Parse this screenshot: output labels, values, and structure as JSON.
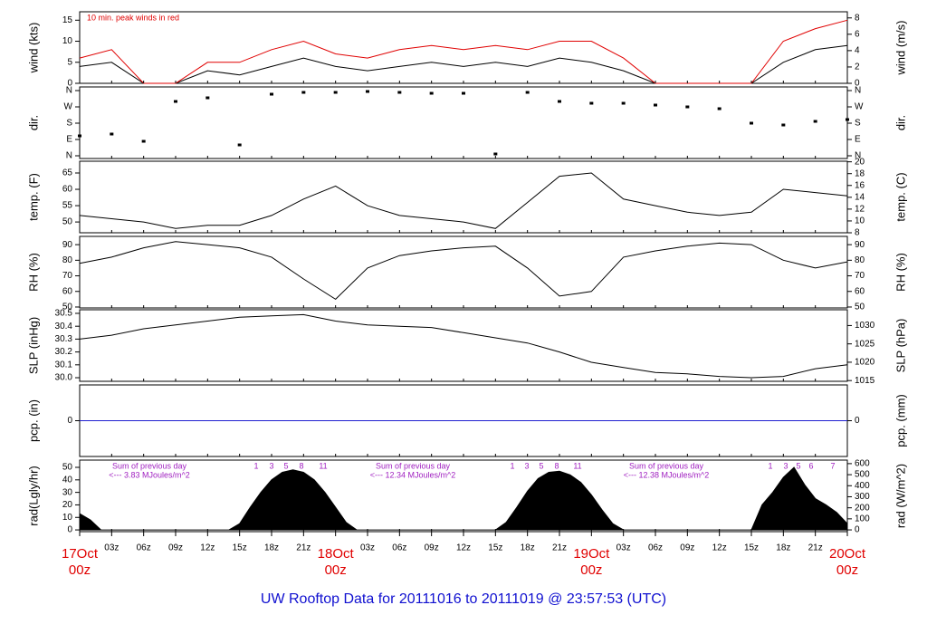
{
  "title": "UW Rooftop Data for 20111016  to  20111019 @ 23:57:53  (UTC)",
  "x_axis": {
    "labels": [
      {
        "date": "17Oct",
        "time": "00z"
      },
      "03z",
      "06z",
      "09z",
      "12z",
      "15z",
      "18z",
      "21z",
      {
        "date": "18Oct",
        "time": "00z"
      },
      "03z",
      "06z",
      "09z",
      "12z",
      "15z",
      "18z",
      "21z",
      {
        "date": "19Oct",
        "time": "00z"
      },
      "03z",
      "06z",
      "09z",
      "12z",
      "15z",
      "18z",
      "21z",
      {
        "date": "20Oct",
        "time": "00z"
      }
    ]
  },
  "chart_data": [
    {
      "type": "line",
      "ylabel": "wind (kts)",
      "y2label": "wind (m/s)",
      "annotation": "10 min. peak winds in red",
      "ylim": [
        0,
        17
      ],
      "yticks": [
        0,
        5,
        10,
        15
      ],
      "y2lim": [
        0,
        8.75
      ],
      "y2ticks": [
        0,
        2,
        4,
        6,
        8
      ],
      "series": [
        {
          "color": "#000000",
          "values": [
            4,
            5,
            0,
            0,
            3,
            2,
            4,
            6,
            4,
            3,
            4,
            5,
            4,
            5,
            4,
            6,
            5,
            3,
            0,
            0,
            0,
            0,
            5,
            8,
            9
          ]
        },
        {
          "color": "#e00000",
          "values": [
            6,
            8,
            0,
            0,
            5,
            5,
            8,
            10,
            7,
            6,
            8,
            9,
            8,
            9,
            8,
            10,
            10,
            6,
            0,
            0,
            0,
            0,
            10,
            13,
            15
          ]
        }
      ]
    },
    {
      "type": "scatter",
      "ylabel": "dir.",
      "y2label": "dir.",
      "ylim": [
        -15,
        380
      ],
      "yticks": [
        {
          "value": 0,
          "label": "N"
        },
        {
          "value": 90,
          "label": "E"
        },
        {
          "value": 180,
          "label": "S"
        },
        {
          "value": 270,
          "label": "W"
        },
        {
          "value": 360,
          "label": "N"
        }
      ],
      "y2lim": [
        -15,
        380
      ],
      "y2ticks": [
        {
          "value": 0,
          "label": "N"
        },
        {
          "value": 90,
          "label": "E"
        },
        {
          "value": 180,
          "label": "S"
        },
        {
          "value": 270,
          "label": "W"
        },
        {
          "value": 360,
          "label": "N"
        }
      ],
      "series": [
        {
          "color": "#000000",
          "values": [
            110,
            120,
            80,
            300,
            320,
            60,
            340,
            350,
            350,
            355,
            350,
            345,
            345,
            10,
            350,
            300,
            290,
            290,
            280,
            270,
            260,
            180,
            170,
            190,
            200
          ]
        }
      ]
    },
    {
      "type": "line",
      "ylabel": "temp. (F)",
      "y2label": "temp. (C)",
      "ylim": [
        46.7,
        68.6
      ],
      "yticks": [
        50,
        55,
        60,
        65
      ],
      "y2lim": [
        8,
        20.1
      ],
      "y2ticks": [
        8,
        10,
        12,
        14,
        16,
        18,
        20
      ],
      "series": [
        {
          "color": "#000000",
          "values": [
            52,
            51,
            50,
            48,
            49,
            49,
            52,
            57,
            61,
            55,
            52,
            51,
            50,
            48,
            56,
            64,
            65,
            57,
            55,
            53,
            52,
            53,
            60,
            59,
            58
          ]
        }
      ]
    },
    {
      "type": "line",
      "ylabel": "RH (%)",
      "y2label": "RH (%)",
      "ylim": [
        49.4,
        95.3
      ],
      "yticks": [
        50,
        60,
        70,
        80,
        90
      ],
      "y2lim": [
        49.4,
        95.3
      ],
      "y2ticks": [
        50,
        60,
        70,
        80,
        90
      ],
      "series": [
        {
          "color": "#000000",
          "values": [
            78,
            82,
            88,
            92,
            90,
            88,
            82,
            68,
            55,
            75,
            83,
            86,
            88,
            89,
            75,
            57,
            60,
            82,
            86,
            89,
            91,
            90,
            80,
            75,
            79
          ]
        }
      ]
    },
    {
      "type": "line",
      "ylabel": "SLP (inHg)",
      "y2label": "SLP (hPa)",
      "ylim": [
        29.972,
        30.528
      ],
      "yticks": [
        {
          "value": 30,
          "label": "30.0"
        },
        30.1,
        30.2,
        30.3,
        30.4,
        30.5
      ],
      "y2lim": [
        1014.8,
        1034.3
      ],
      "y2ticks": [
        1015,
        1020,
        1025,
        1030
      ],
      "series": [
        {
          "color": "#000000",
          "values": [
            30.3,
            30.33,
            30.38,
            30.41,
            30.44,
            30.47,
            30.48,
            30.49,
            30.44,
            30.41,
            30.4,
            30.39,
            30.35,
            30.31,
            30.27,
            30.2,
            30.12,
            30.08,
            30.04,
            30.03,
            30.01,
            30.0,
            30.01,
            30.07,
            30.1
          ]
        }
      ]
    },
    {
      "type": "line",
      "ylabel": "pcp. (in)",
      "y2label": "pcp. (mm)",
      "ylim": [
        -1,
        1
      ],
      "yticks": [
        0
      ],
      "y2lim": [
        -1,
        1
      ],
      "y2ticks": [
        0
      ],
      "series": [
        {
          "color": "#2020d0",
          "values": [
            0,
            0,
            0,
            0,
            0,
            0,
            0,
            0,
            0,
            0,
            0,
            0,
            0,
            0,
            0,
            0,
            0,
            0,
            0,
            0,
            0,
            0,
            0,
            0,
            0
          ]
        }
      ]
    },
    {
      "type": "area",
      "ylabel": "rad(Lgly/hr)",
      "y2label": "rad (W/m^2)",
      "ylim": [
        -1.4,
        55.8
      ],
      "yticks": [
        0,
        10,
        20,
        30,
        40,
        50
      ],
      "y2lim": [
        -16,
        632
      ],
      "y2ticks": [
        0,
        100,
        200,
        300,
        400,
        500,
        600
      ],
      "annotations": [
        {
          "title": "Sum of previous day",
          "value": "<--- 3.83 MJoules/m^2",
          "hours": [
            "1",
            "3",
            "5",
            "8",
            "11"
          ]
        },
        {
          "title": "Sum of previous day",
          "value": "<--- 12.34 MJoules/m^2",
          "hours": [
            "1",
            "3",
            "5",
            "8",
            "11"
          ]
        },
        {
          "title": "Sum of previous day",
          "value": "<--- 12.38 MJoules/m^2",
          "hours": [
            "1",
            "3",
            "5",
            "6",
            "7"
          ]
        }
      ],
      "series": [
        {
          "color": "#000000",
          "values": [
            13,
            8,
            0,
            0,
            0,
            0,
            0,
            0,
            0,
            0,
            0,
            0,
            0,
            0,
            0,
            5,
            18,
            30,
            40,
            46,
            48,
            46,
            40,
            30,
            18,
            6,
            0,
            0,
            0,
            0,
            0,
            0,
            0,
            0,
            0,
            0,
            0,
            0,
            0,
            0,
            6,
            18,
            31,
            41,
            46,
            47,
            44,
            38,
            28,
            16,
            5,
            0,
            0,
            0,
            0,
            0,
            0,
            0,
            0,
            0,
            0,
            0,
            0,
            0,
            20,
            30,
            42,
            50,
            36,
            25,
            20,
            14,
            5
          ]
        }
      ]
    }
  ]
}
